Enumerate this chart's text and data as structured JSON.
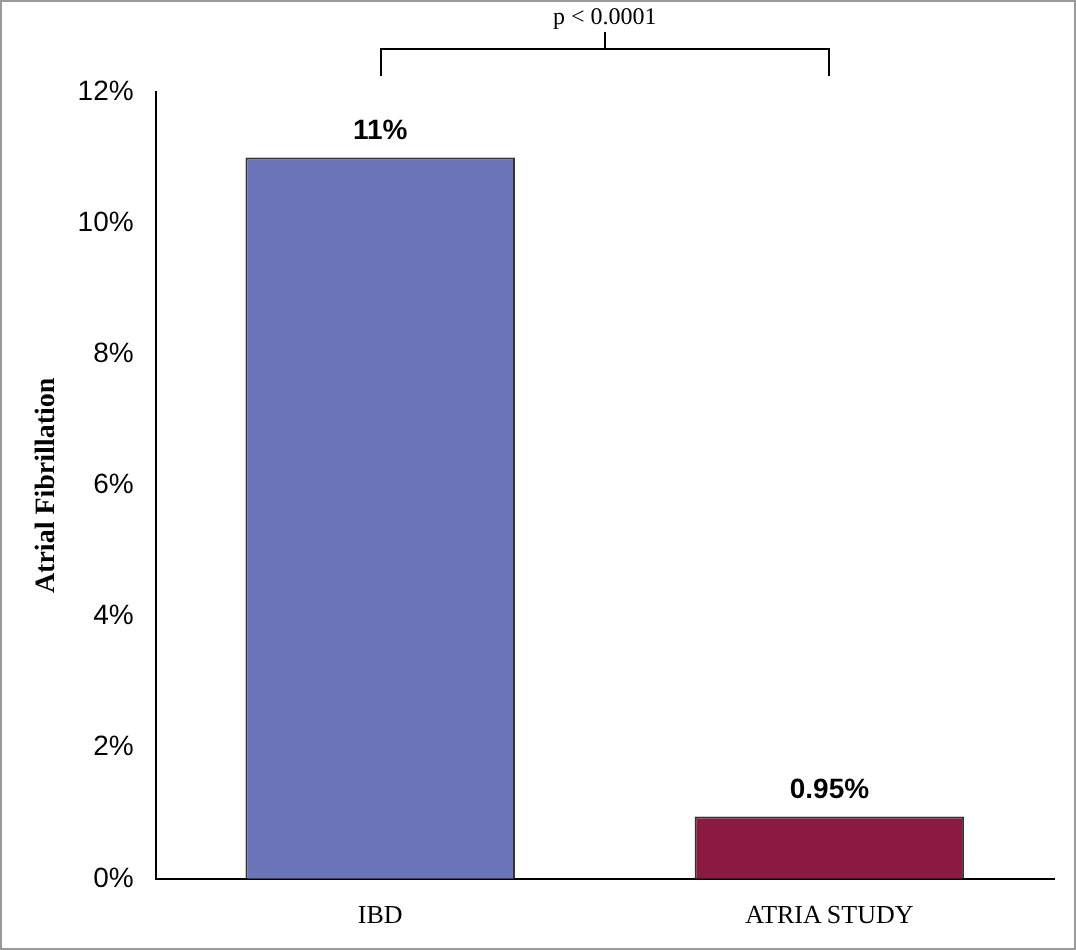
{
  "chart_data": {
    "type": "bar",
    "ylabel": "Atrial Fibrillation",
    "categories": [
      "IBD",
      "ATRIA STUDY"
    ],
    "values": [
      11,
      0.95
    ],
    "colors": [
      "#6b74b8",
      "#8b1a42"
    ],
    "value_labels": [
      "11%",
      "0.95%"
    ],
    "ylim": [
      0,
      12
    ],
    "yticks": [
      {
        "value": 0,
        "label": "0%"
      },
      {
        "value": 2,
        "label": "2%"
      },
      {
        "value": 4,
        "label": "4%"
      },
      {
        "value": 6,
        "label": "6%"
      },
      {
        "value": 8,
        "label": "8%"
      },
      {
        "value": 10,
        "label": "10%"
      },
      {
        "value": 12,
        "label": "12%"
      }
    ],
    "grid": false,
    "legend": false,
    "annotations": [
      "p < 0.0001"
    ]
  }
}
